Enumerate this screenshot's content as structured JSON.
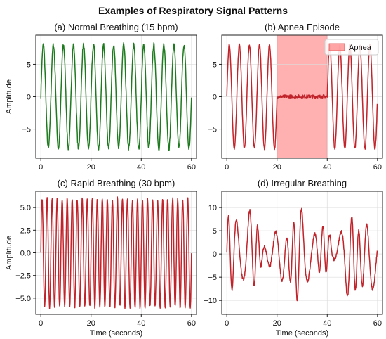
{
  "figure_title": "Examples of Respiratory Signal Patterns",
  "chart_data": [
    {
      "type": "line",
      "title": "(a) Normal Breathing (15 bpm)",
      "xlabel": "",
      "ylabel": "Amplitude",
      "xlim": [
        -2,
        62
      ],
      "ylim": [
        -9.5,
        9.5
      ],
      "xticks": [
        0,
        20,
        40,
        60
      ],
      "yticks": [
        -5,
        0,
        5
      ],
      "ytick_labels": [
        "−5",
        "0",
        "5"
      ],
      "grid": true,
      "colors": {
        "line": "#1e7a1e"
      },
      "series": [
        {
          "signal": "sine",
          "amplitude": 8.0,
          "cycles_per_minute": 15,
          "x_range": [
            0,
            60
          ],
          "noise": 0.35
        }
      ]
    },
    {
      "type": "line",
      "title": "(b) Apnea Episode",
      "xlabel": "",
      "ylabel": "",
      "xlim": [
        -2,
        62
      ],
      "ylim": [
        -9.5,
        9.5
      ],
      "xticks": [
        0,
        20,
        40,
        60
      ],
      "yticks": [
        -5,
        0,
        5
      ],
      "ytick_labels": [
        "−5",
        "0",
        "5"
      ],
      "grid": true,
      "colors": {
        "line": "#c0232a",
        "band": "#ff8f8f"
      },
      "highlight": {
        "label": "Apnea",
        "x_start": 20,
        "x_end": 40
      },
      "legend": {
        "placement": "top-right",
        "entries": [
          "Apnea"
        ]
      },
      "series": [
        {
          "signal": "sine with flat segment 20–40",
          "amplitude": 8.0,
          "cycles_per_minute": 15,
          "x_range": [
            0,
            60
          ],
          "noise": 0.2
        }
      ]
    },
    {
      "type": "line",
      "title": "(c) Rapid Breathing (30 bpm)",
      "xlabel": "Time (seconds)",
      "ylabel": "Amplitude",
      "xlim": [
        -2,
        62
      ],
      "ylim": [
        -6.8,
        6.8
      ],
      "xticks": [
        0,
        20,
        40,
        60
      ],
      "yticks": [
        -5.0,
        -2.5,
        0.0,
        2.5,
        5.0
      ],
      "ytick_labels": [
        "−5.0",
        "−2.5",
        "0.0",
        "2.5",
        "5.0"
      ],
      "grid": true,
      "colors": {
        "line": "#c0232a"
      },
      "series": [
        {
          "signal": "sine",
          "amplitude": 6.0,
          "cycles_per_minute": 30,
          "x_range": [
            0,
            60
          ],
          "noise": 0.2
        }
      ]
    },
    {
      "type": "line",
      "title": "(d) Irregular Breathing",
      "xlabel": "Time (seconds)",
      "ylabel": "",
      "xlim": [
        -2,
        62
      ],
      "ylim": [
        -13,
        13.5
      ],
      "xticks": [
        0,
        20,
        40,
        60
      ],
      "yticks": [
        -10,
        -5,
        0,
        5,
        10
      ],
      "ytick_labels": [
        "−10",
        "−5",
        "0",
        "5",
        "10"
      ],
      "grid": true,
      "colors": {
        "line": "#c0232a"
      },
      "series": [
        {
          "signal": "irregular",
          "x_range": [
            0,
            60
          ]
        }
      ]
    }
  ]
}
